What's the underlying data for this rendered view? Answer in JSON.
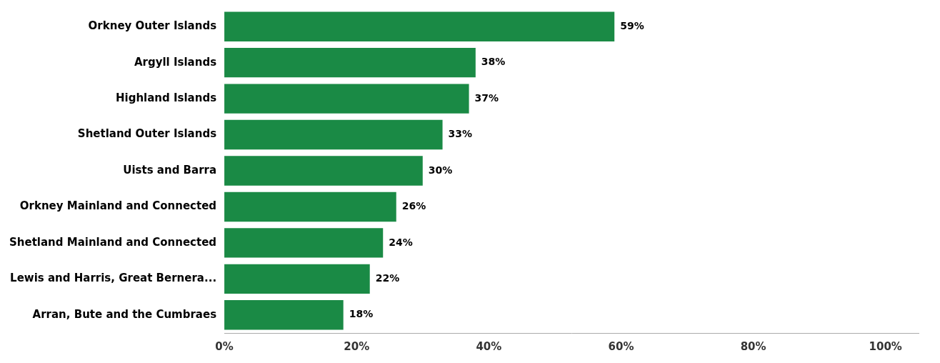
{
  "chart_data": {
    "type": "bar",
    "orientation": "horizontal",
    "categories": [
      "Orkney Outer Islands",
      "Argyll Islands",
      "Highland Islands",
      "Shetland Outer Islands",
      "Uists and Barra",
      "Orkney Mainland and Connected",
      "Shetland Mainland and Connected",
      "Lewis and Harris, Great Bernera...",
      "Arran, Bute and the Cumbraes"
    ],
    "values": [
      59,
      38,
      37,
      33,
      30,
      26,
      24,
      22,
      18
    ],
    "value_labels": [
      "59%",
      "38%",
      "37%",
      "33%",
      "30%",
      "26%",
      "24%",
      "22%",
      "18%"
    ],
    "data_labels": true,
    "color": "#1a8a45",
    "xlim": [
      0,
      105
    ],
    "xticks": [
      {
        "value": 0,
        "label": "0%"
      },
      {
        "value": 20,
        "label": "20%"
      },
      {
        "value": 40,
        "label": "40%"
      },
      {
        "value": 60,
        "label": "60%"
      },
      {
        "value": 80,
        "label": "80%"
      },
      {
        "value": 100,
        "label": "100%"
      }
    ],
    "grid": false
  }
}
